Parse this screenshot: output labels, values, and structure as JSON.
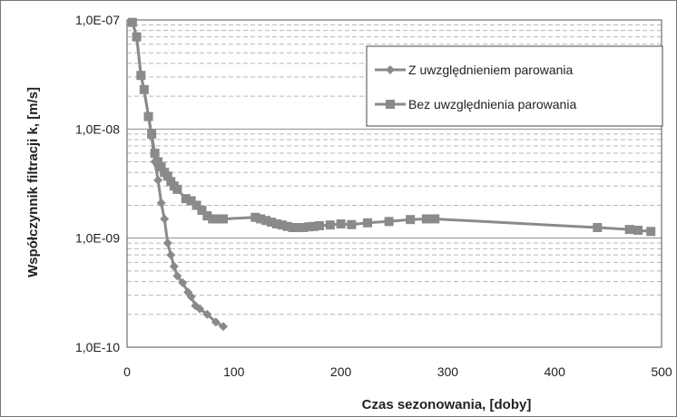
{
  "chart_data": {
    "type": "scatter",
    "title": "",
    "xlabel": "Czas sezonowania,   [doby]",
    "ylabel": "Współczynnik filtracji k,  [m/s]",
    "xlim": [
      0,
      500
    ],
    "ylim": [
      1e-10,
      1e-07
    ],
    "yscale": "log",
    "grid": true,
    "legend_position": "top-right",
    "x_ticks": [
      "0",
      "100",
      "200",
      "300",
      "400",
      "500"
    ],
    "y_ticks": [
      "1,0E-10",
      "1,0E-09",
      "1,0E-08",
      "1,0E-07"
    ],
    "series": [
      {
        "name": "Z uwzględnieniem parowania",
        "marker": "diamond",
        "color": "#8a8a8a",
        "x": [
          5,
          9,
          13,
          16,
          20,
          23,
          26,
          29,
          32,
          35,
          38,
          41,
          44,
          47,
          52,
          57,
          60,
          64,
          68,
          75,
          83,
          90
        ],
        "y": [
          9.5e-08,
          7e-08,
          3.1e-08,
          2.3e-08,
          1.3e-08,
          8.5e-09,
          5e-09,
          3.4e-09,
          2.1e-09,
          1.5e-09,
          9e-10,
          7e-10,
          5.5e-10,
          4.5e-10,
          3.9e-10,
          3.2e-10,
          2.9e-10,
          2.4e-10,
          2.25e-10,
          2e-10,
          1.7e-10,
          1.55e-10
        ]
      },
      {
        "name": "Bez uwzględnienia parowania",
        "marker": "square",
        "color": "#8a8a8a",
        "x": [
          5,
          9,
          13,
          16,
          20,
          23,
          26,
          29,
          32,
          35,
          38,
          41,
          44,
          47,
          55,
          60,
          65,
          70,
          75,
          80,
          85,
          90,
          120,
          125,
          130,
          135,
          140,
          145,
          150,
          155,
          160,
          165,
          170,
          175,
          180,
          190,
          200,
          210,
          225,
          245,
          265,
          280,
          288,
          440,
          470,
          478,
          490
        ],
        "y": [
          9.5e-08,
          7e-08,
          3.1e-08,
          2.3e-08,
          1.3e-08,
          9e-09,
          6e-09,
          5e-09,
          4.5e-09,
          4e-09,
          3.7e-09,
          3.3e-09,
          3e-09,
          2.8e-09,
          2.3e-09,
          2.2e-09,
          2e-09,
          1.8e-09,
          1.6e-09,
          1.5e-09,
          1.5e-09,
          1.5e-09,
          1.55e-09,
          1.5e-09,
          1.45e-09,
          1.4e-09,
          1.35e-09,
          1.32e-09,
          1.28e-09,
          1.25e-09,
          1.25e-09,
          1.25e-09,
          1.27e-09,
          1.28e-09,
          1.3e-09,
          1.32e-09,
          1.35e-09,
          1.33e-09,
          1.38e-09,
          1.42e-09,
          1.48e-09,
          1.5e-09,
          1.5e-09,
          1.25e-09,
          1.2e-09,
          1.18e-09,
          1.15e-09
        ]
      }
    ]
  }
}
